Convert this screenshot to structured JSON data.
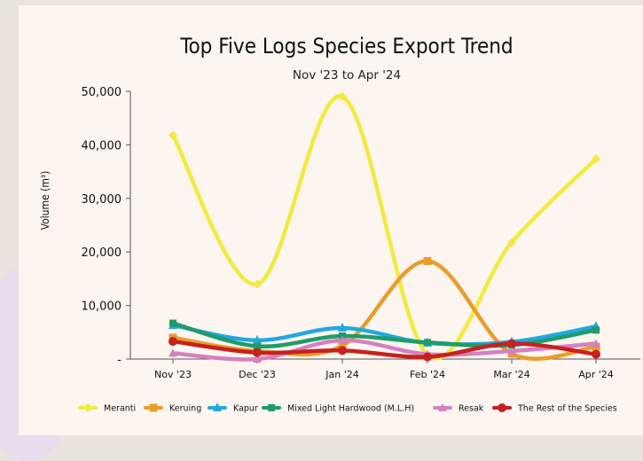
{
  "chart_data": {
    "type": "line",
    "title": "Top Five Logs Species Export Trend",
    "subtitle": "Nov '23 to Apr '24",
    "ylabel": "Volume (m³)",
    "xlabel": "",
    "categories": [
      "Nov '23",
      "Dec '23",
      "Jan '24",
      "Feb '24",
      "Mar '24",
      "Apr '24"
    ],
    "ylim": [
      0,
      50000
    ],
    "yticks": [
      0,
      10000,
      20000,
      30000,
      40000,
      50000
    ],
    "ytick_labels": [
      "-",
      "10,000",
      "20,000",
      "30,000",
      "40,000",
      "50,000"
    ],
    "grid": false,
    "legend_position": "bottom",
    "series": [
      {
        "name": "Meranti",
        "color": "#f2ea3e",
        "values": [
          41800,
          14000,
          49000,
          800,
          21800,
          37400
        ]
      },
      {
        "name": "Keruing",
        "color": "#e99d2b",
        "values": [
          4000,
          1500,
          2500,
          18300,
          1000,
          2300
        ]
      },
      {
        "name": "Kapur",
        "color": "#22a8e0",
        "values": [
          6300,
          3500,
          5800,
          3000,
          3200,
          6100
        ]
      },
      {
        "name": "Mixed Light Hardwood (M.L.H)",
        "color": "#1f9c69",
        "values": [
          6700,
          2400,
          4300,
          3100,
          2600,
          5400
        ]
      },
      {
        "name": "Resak",
        "color": "#d580c0",
        "values": [
          1100,
          0,
          3500,
          900,
          1500,
          2900
        ]
      },
      {
        "name": "The Rest of the Species",
        "color": "#c8201e",
        "values": [
          3300,
          1200,
          1600,
          400,
          2900,
          900
        ]
      }
    ]
  }
}
